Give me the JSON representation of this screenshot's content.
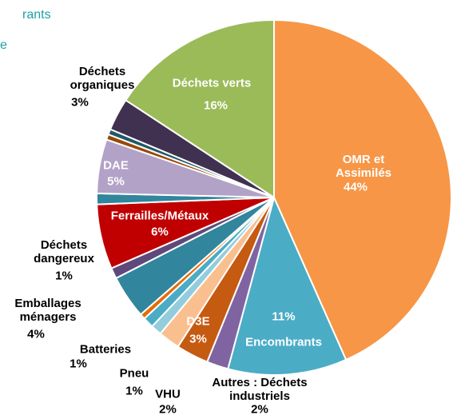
{
  "chart_data": {
    "type": "pie",
    "title_fragments": [
      "rants",
      "e"
    ],
    "categories": [
      "OMR et Assimilés",
      "Encombrants",
      "Autres : Déchets industriels",
      "D3E",
      "VHU",
      "Pneu",
      "Batteries",
      null,
      "Emballages ménagers",
      "Déchets dangereux",
      "Ferrailles/Métaux",
      null,
      "DAE",
      null,
      null,
      "Déchets organiques",
      "Déchets verts"
    ],
    "values": [
      44,
      11,
      2,
      3,
      2,
      1,
      1,
      0.5,
      4,
      1,
      6,
      1,
      5,
      0.5,
      0.5,
      3,
      16
    ],
    "value_labels": [
      "44%",
      "11%",
      "2%",
      "3%",
      "2%",
      "1%",
      "1%",
      null,
      "4%",
      "1%",
      "6%",
      null,
      "5%",
      null,
      null,
      "3%",
      "16%"
    ],
    "colors": [
      "#f79646",
      "#4bacc6",
      "#8064a2",
      "#c55a11",
      "#fabf8f",
      "#93cddd",
      "#4bacc6",
      "#e46c0a",
      "#31859c",
      "#5f497a",
      "#c00000",
      "#31859c",
      "#b3a2c7",
      "#984807",
      "#215967",
      "#403151",
      "#9bbb59"
    ]
  }
}
